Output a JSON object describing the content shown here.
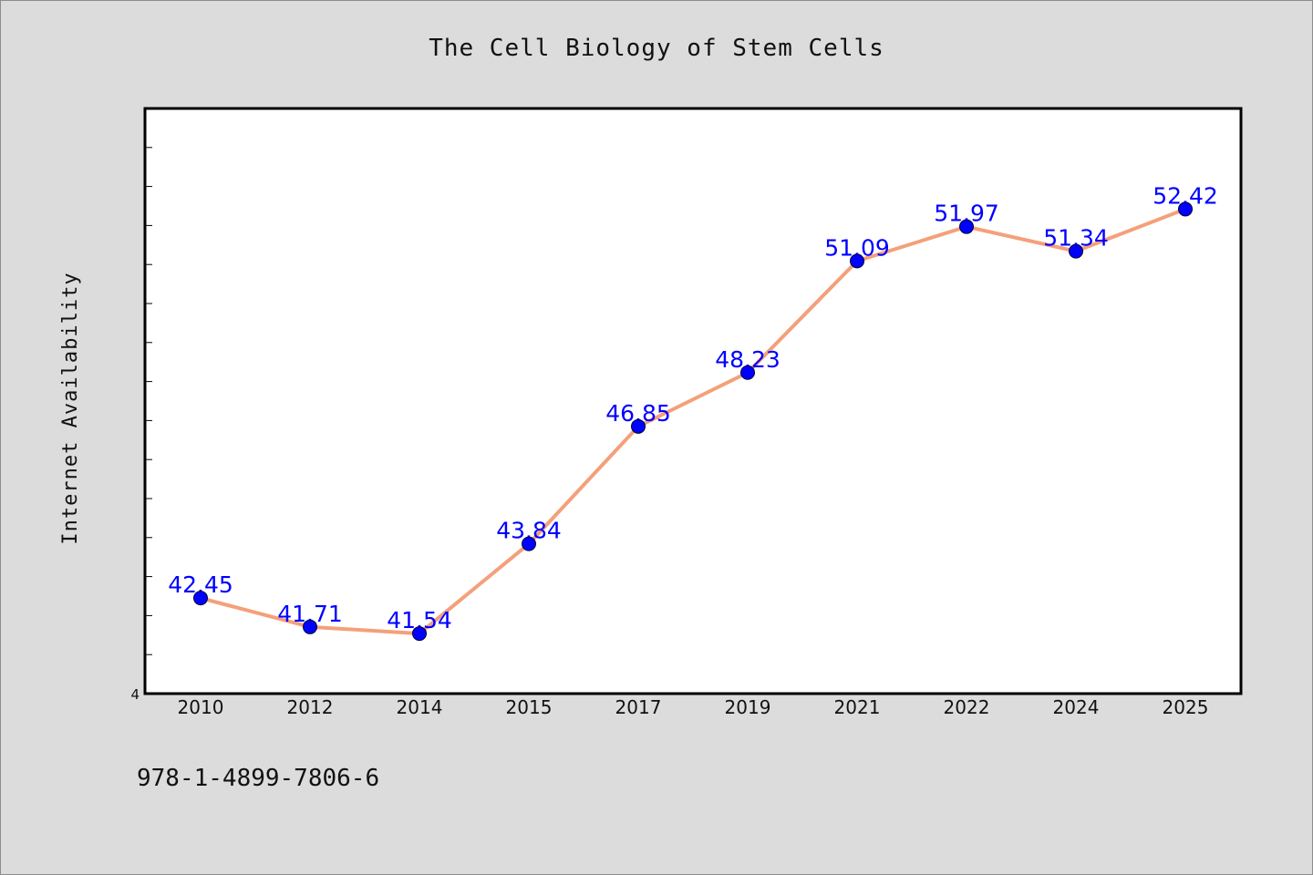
{
  "chart_data": {
    "type": "line",
    "title": "The Cell Biology of Stem Cells",
    "xlabel": "",
    "ylabel": "Internet Availability",
    "categories": [
      "2010",
      "2012",
      "2014",
      "2015",
      "2017",
      "2019",
      "2021",
      "2022",
      "2024",
      "2025"
    ],
    "series": [
      {
        "values": [
          42.45,
          41.71,
          41.54,
          43.84,
          46.85,
          48.23,
          51.09,
          51.97,
          51.34,
          52.42
        ],
        "data_labels": [
          "42.45",
          "41.71",
          "41.54",
          "43.84",
          "46.85",
          "48.23",
          "51.09",
          "51.97",
          "51.34",
          "52.42"
        ]
      }
    ],
    "ylim": [
      40.0,
      55.0
    ],
    "y_tick_labels": [
      "4"
    ],
    "grid": false,
    "legend": "none",
    "colors": {
      "line": "#f4a07a",
      "marker": "#0000ff",
      "data_label": "#0000ff",
      "plot_background": "#ffffff",
      "page_background": "#dcdcdc"
    }
  },
  "footer": {
    "isbn": "978-1-4899-7806-6"
  }
}
